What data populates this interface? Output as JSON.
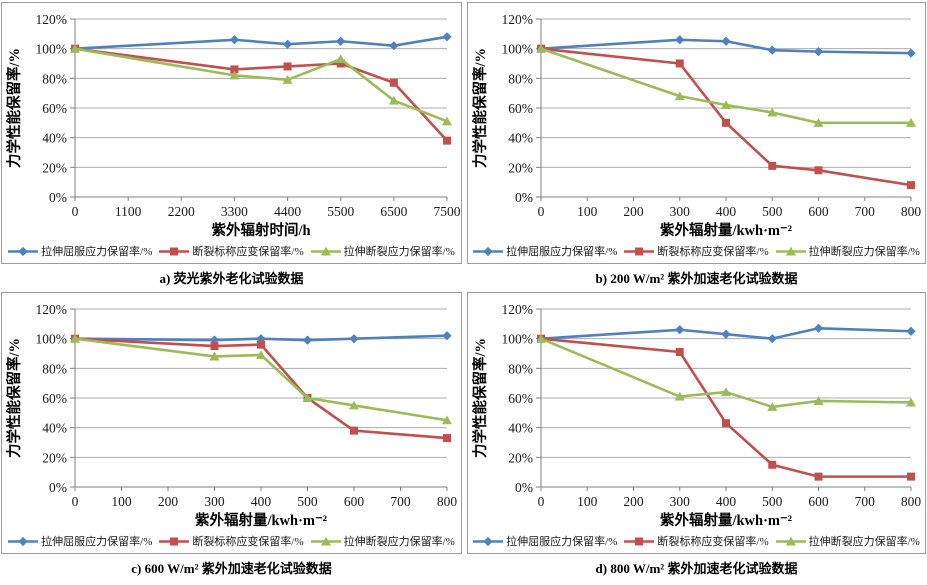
{
  "figure": {
    "background": "#ffffff"
  },
  "colors": {
    "series_blue": "#4F81BD",
    "series_red": "#C0504D",
    "series_green": "#9BBB59",
    "gridline": "#ADADAD",
    "axis": "#808080",
    "panel_border": "#9c9c9c",
    "text": "#1a1a1a"
  },
  "chart_data": [
    {
      "type": "line",
      "title": "a) 荧光紫外老化试验数据",
      "xlabel": "紫外辐射时间/h",
      "ylabel": "力学性能保留率/%",
      "ylim": [
        0,
        120
      ],
      "y_ticks": [
        0,
        20,
        40,
        60,
        80,
        100,
        120
      ],
      "y_tick_format": "percent",
      "grid": true,
      "legend_position": "bottom",
      "x_ticks": [
        0,
        1100,
        2200,
        3300,
        4400,
        5500,
        6500,
        7500
      ],
      "x": [
        0,
        3300,
        4400,
        5500,
        6500,
        7500
      ],
      "series": [
        {
          "name": "拉伸屈服应力保留率/%",
          "marker": "diamond",
          "color": "#4F81BD",
          "values": [
            100,
            106,
            103,
            105,
            102,
            108
          ]
        },
        {
          "name": "断裂标称应变保留率/%",
          "marker": "square",
          "color": "#C0504D",
          "values": [
            100,
            86,
            88,
            90,
            77,
            38
          ]
        },
        {
          "name": "拉伸断裂应力保留率/%",
          "marker": "triangle",
          "color": "#9BBB59",
          "values": [
            100,
            82,
            79,
            93,
            65,
            51
          ]
        }
      ]
    },
    {
      "type": "line",
      "title": "b) 200 W/m² 紫外加速老化试验数据",
      "xlabel": "紫外辐射量/kwh·m⁻²",
      "ylabel": "力学性能保留率/%",
      "ylim": [
        0,
        120
      ],
      "y_ticks": [
        0,
        20,
        40,
        60,
        80,
        100,
        120
      ],
      "y_tick_format": "percent",
      "grid": true,
      "legend_position": "bottom",
      "x_ticks": [
        0,
        100,
        200,
        300,
        400,
        500,
        600,
        700,
        800
      ],
      "x": [
        0,
        300,
        400,
        500,
        600,
        800
      ],
      "series": [
        {
          "name": "拉伸屈服应力保留率/%",
          "marker": "diamond",
          "color": "#4F81BD",
          "values": [
            100,
            106,
            105,
            99,
            98,
            97
          ]
        },
        {
          "name": "断裂标称应变保留率/%",
          "marker": "square",
          "color": "#C0504D",
          "values": [
            100,
            90,
            50,
            21,
            18,
            8
          ]
        },
        {
          "name": "拉伸断裂应力保留率/%",
          "marker": "triangle",
          "color": "#9BBB59",
          "values": [
            100,
            68,
            62,
            57,
            50,
            50
          ]
        }
      ]
    },
    {
      "type": "line",
      "title": "c) 600 W/m² 紫外加速老化试验数据",
      "xlabel": "紫外辐射量/kwh·m⁻²",
      "ylabel": "力学性能保留率/%",
      "ylim": [
        0,
        120
      ],
      "y_ticks": [
        0,
        20,
        40,
        60,
        80,
        100,
        120
      ],
      "y_tick_format": "percent",
      "grid": true,
      "legend_position": "bottom",
      "x_ticks": [
        0,
        100,
        200,
        300,
        400,
        500,
        600,
        700,
        800
      ],
      "x": [
        0,
        300,
        400,
        500,
        600,
        800
      ],
      "series": [
        {
          "name": "拉伸屈服应力保留率/%",
          "marker": "diamond",
          "color": "#4F81BD",
          "values": [
            100,
            99,
            100,
            99,
            100,
            102
          ]
        },
        {
          "name": "断裂标称应变保留率/%",
          "marker": "square",
          "color": "#C0504D",
          "values": [
            100,
            95,
            96,
            60,
            38,
            33
          ]
        },
        {
          "name": "拉伸断裂应力保留率/%",
          "marker": "triangle",
          "color": "#9BBB59",
          "values": [
            100,
            88,
            89,
            60,
            55,
            45
          ]
        }
      ]
    },
    {
      "type": "line",
      "title": "d) 800 W/m² 紫外加速老化试验数据",
      "xlabel": "紫外辐射量/kwh·m⁻²",
      "ylabel": "力学性能保留率/%",
      "ylim": [
        0,
        120
      ],
      "y_ticks": [
        0,
        20,
        40,
        60,
        80,
        100,
        120
      ],
      "y_tick_format": "percent",
      "grid": true,
      "legend_position": "bottom",
      "x_ticks": [
        0,
        100,
        200,
        300,
        400,
        500,
        600,
        700,
        800
      ],
      "x": [
        0,
        300,
        400,
        500,
        600,
        800
      ],
      "series": [
        {
          "name": "拉伸屈服应力保留率/%",
          "marker": "diamond",
          "color": "#4F81BD",
          "values": [
            100,
            106,
            103,
            100,
            107,
            105
          ]
        },
        {
          "name": "断裂标称应变保留率/%",
          "marker": "square",
          "color": "#C0504D",
          "values": [
            100,
            91,
            43,
            15,
            7,
            7
          ]
        },
        {
          "name": "拉伸断裂应力保留率/%",
          "marker": "triangle",
          "color": "#9BBB59",
          "values": [
            100,
            61,
            64,
            54,
            58,
            57
          ]
        }
      ]
    }
  ]
}
